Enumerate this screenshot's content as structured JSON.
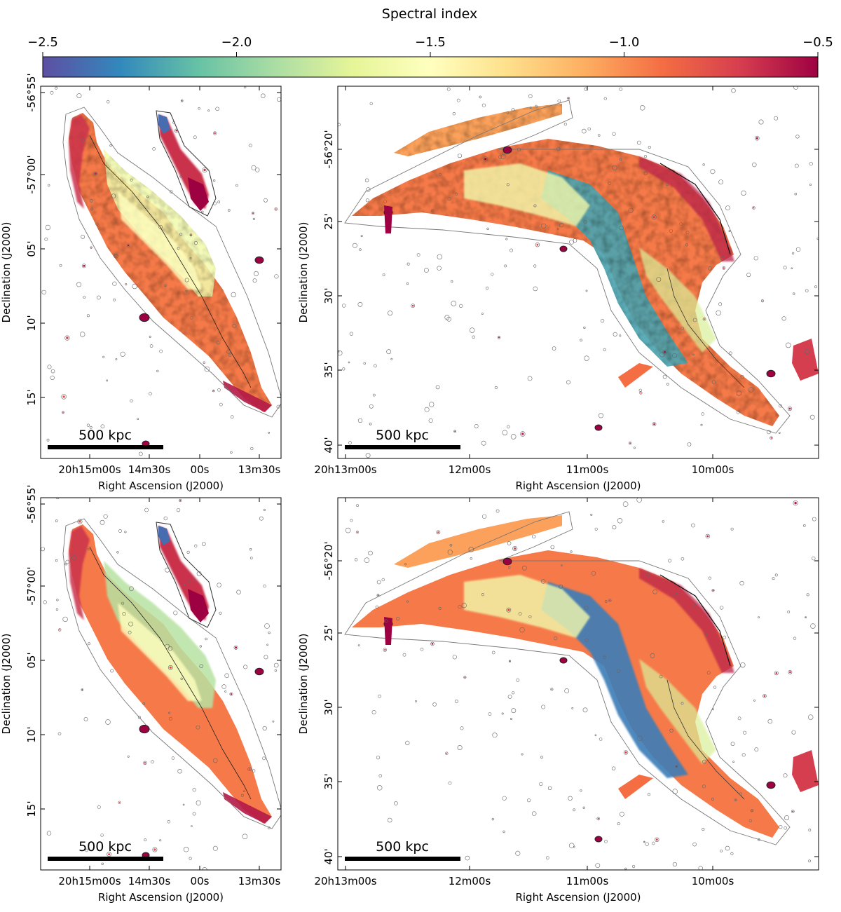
{
  "colorbar": {
    "label": "Spectral index",
    "ticks": [
      "−2.5",
      "−2.0",
      "−1.5",
      "−1.0",
      "−0.5"
    ],
    "range": [
      -2.5,
      -0.5
    ],
    "colors": [
      "#5e4fa2",
      "#3288bd",
      "#66c2a5",
      "#abdda4",
      "#e6f598",
      "#ffffbf",
      "#fee08b",
      "#fdae61",
      "#f46d43",
      "#d53e4f",
      "#9e0142"
    ]
  },
  "chart_data": [
    {
      "panel": "top-left",
      "type": "heatmap",
      "xlabel": "Right Ascension (J2000)",
      "ylabel": "Declination (J2000)",
      "xticks": [
        "20h15m00s",
        "14m30s",
        "00s",
        "13m30s"
      ],
      "yticks": [
        "-56°55'",
        "-57°00'",
        "05'",
        "10'",
        "15'"
      ],
      "scalebar": "500 kpc"
    },
    {
      "panel": "top-right",
      "type": "heatmap",
      "xlabel": "Right Ascension (J2000)",
      "ylabel": "Declination (J2000)",
      "xticks": [
        "20h13m00s",
        "12m00s",
        "11m00s",
        "10m00s"
      ],
      "yticks": [
        "-56°20'",
        "25'",
        "30'",
        "35'",
        "40'"
      ],
      "scalebar": "500 kpc"
    },
    {
      "panel": "bottom-left",
      "type": "heatmap",
      "xlabel": "Right Ascension (J2000)",
      "ylabel": "Declination (J2000)",
      "xticks": [
        "20h15m00s",
        "14m30s",
        "00s",
        "13m30s"
      ],
      "yticks": [
        "-56°55'",
        "-57°00'",
        "05'",
        "10'",
        "15'"
      ],
      "scalebar": "500 kpc"
    },
    {
      "panel": "bottom-right",
      "type": "heatmap",
      "xlabel": "Right Ascension (J2000)",
      "ylabel": "Declination (J2000)",
      "xticks": [
        "20h13m00s",
        "12m00s",
        "11m00s",
        "10m00s"
      ],
      "yticks": [
        "-56°20'",
        "25'",
        "30'",
        "35'",
        "40'"
      ],
      "scalebar": "500 kpc"
    }
  ]
}
